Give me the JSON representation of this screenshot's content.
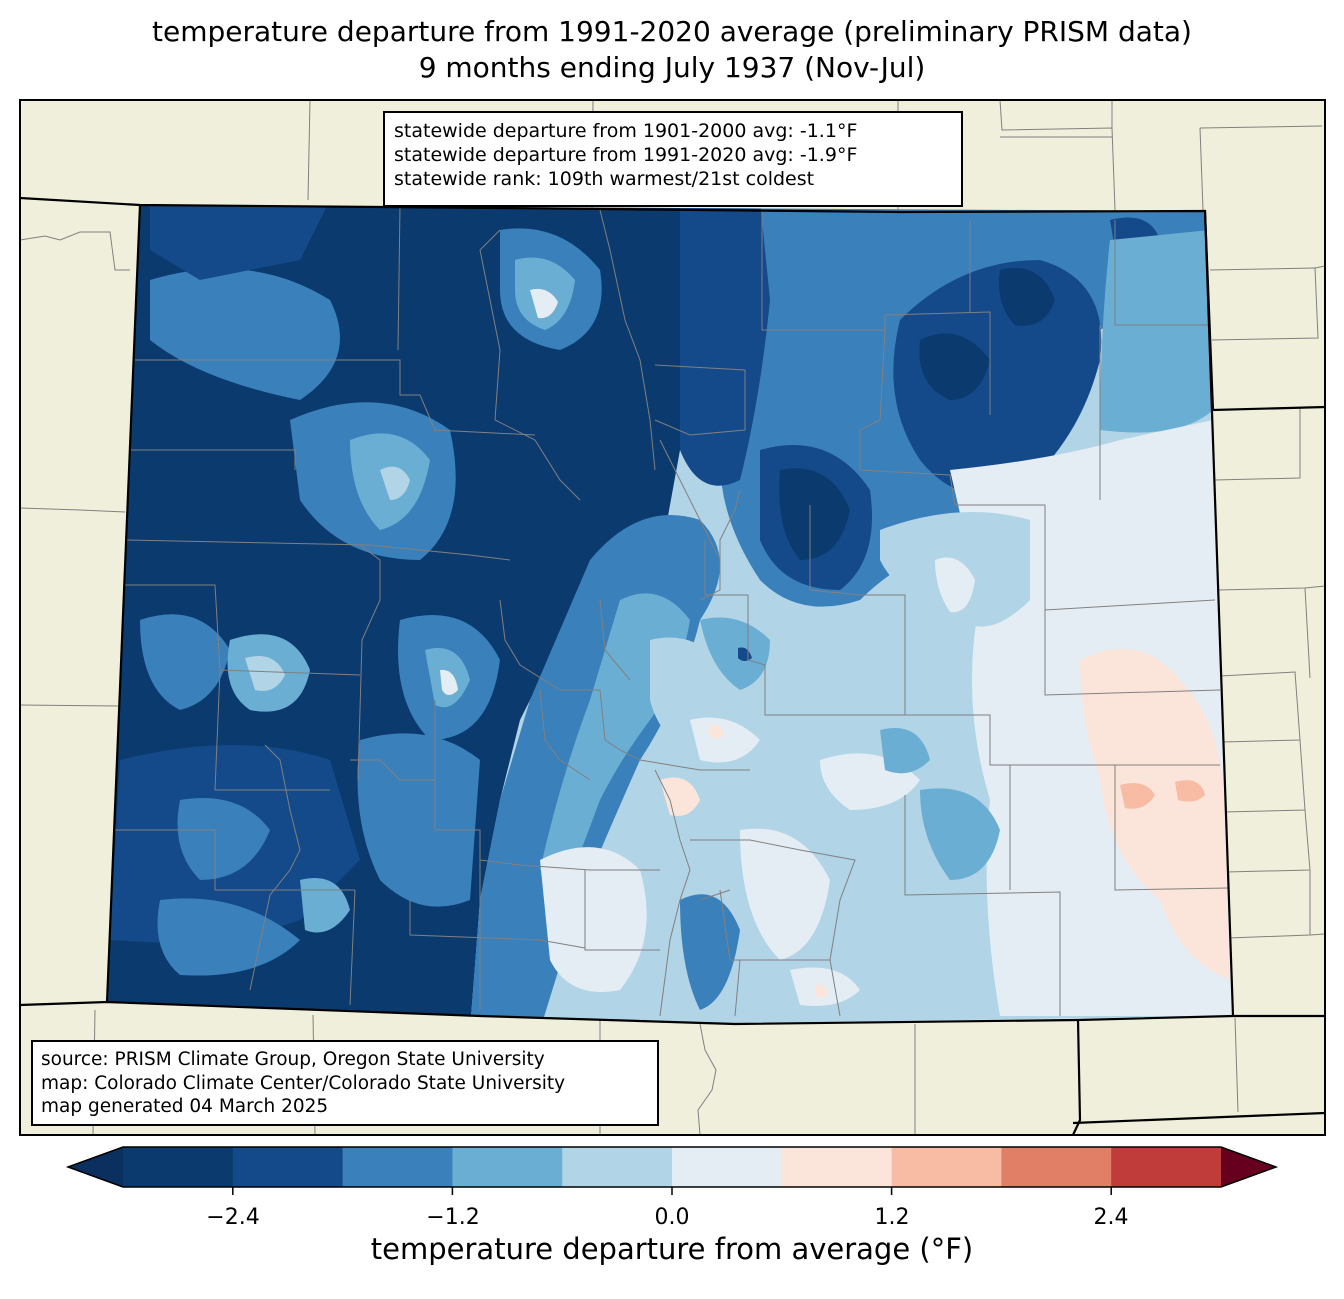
{
  "title": {
    "line1": "temperature departure from 1991-2020 average (preliminary PRISM data)",
    "line2": "9 months ending July 1937 (Nov-Jul)"
  },
  "stats": {
    "line1": "statewide departure from 1901-2000 avg: -1.1°F",
    "line2": "statewide departure from 1991-2020 avg: -1.9°F",
    "line3": "statewide rank: 109th warmest/21st coldest"
  },
  "source": {
    "line1": "source: PRISM Climate Group, Oregon State University",
    "line2": "map: Colorado Climate Center/Colorado State University",
    "line3": "map generated 04 March 2025"
  },
  "colorbar": {
    "label": "temperature departure from average (°F)",
    "ticks": [
      "−2.4",
      "−1.2",
      "0.0",
      "1.2",
      "2.4"
    ],
    "levels": [
      -3.0,
      -2.4,
      -1.8,
      -1.2,
      -0.6,
      0.0,
      0.6,
      1.2,
      1.8,
      2.4,
      3.0
    ],
    "colors": [
      "#0b3a6e",
      "#14498a",
      "#3a80bb",
      "#6aaed3",
      "#b2d4e7",
      "#e4edf4",
      "#fbe5da",
      "#f8bca4",
      "#e17f66",
      "#c03c3b",
      "#8b0d25"
    ],
    "under_color": "#0b2f5e",
    "over_color": "#67001f"
  },
  "map_colors": {
    "land": "#efefdb",
    "county_line": "#808080",
    "state_line": "#000000"
  }
}
